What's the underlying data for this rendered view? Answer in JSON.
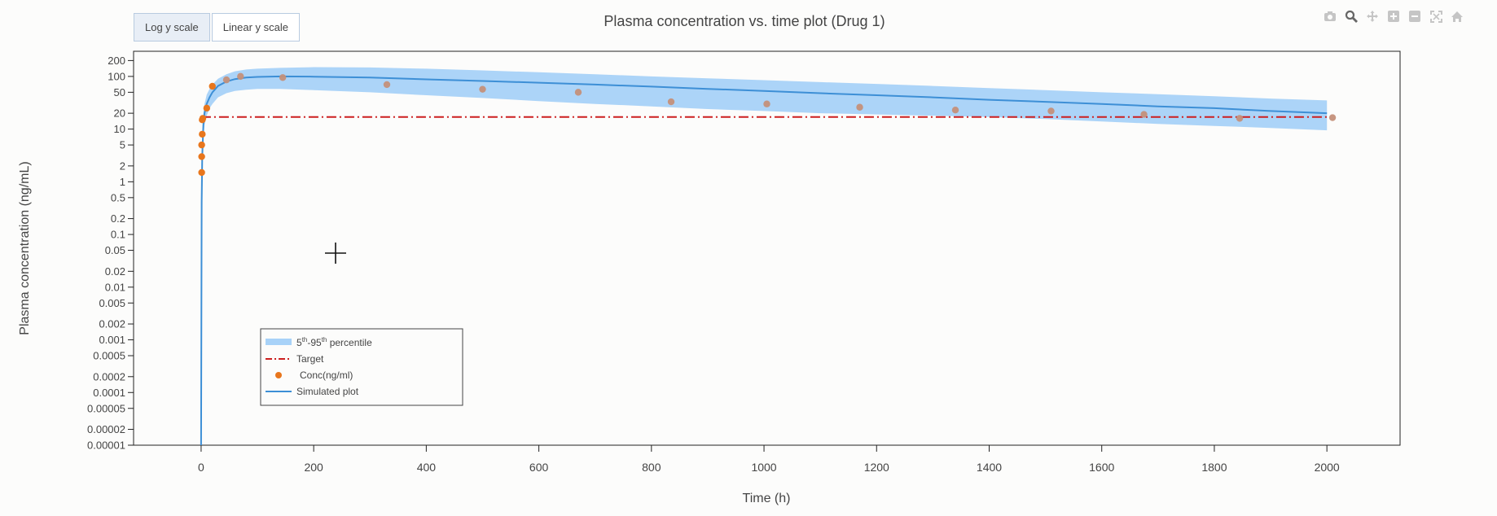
{
  "buttons": {
    "log_label": "Log y scale",
    "linear_label": "Linear y scale",
    "active": "log"
  },
  "modebar": [
    "camera-icon",
    "zoom-icon",
    "pan-icon",
    "zoom-in-icon",
    "zoom-out-icon",
    "autoscale-icon",
    "reset-axes-icon"
  ],
  "colors": {
    "band": "#a8d2f8",
    "line": "#3d8fd6",
    "target": "#cc1f1f",
    "points": "#e8761c",
    "frame": "#222222"
  },
  "chart_data": {
    "type": "line",
    "title": "Plasma concentration vs. time plot (Drug 1)",
    "xlabel": "Time (h)",
    "ylabel": "Plasma concentration (ng/mL)",
    "yscale": "log",
    "xlim": [
      -120,
      2130
    ],
    "ylim": [
      1e-05,
      300
    ],
    "x_ticks": [
      0,
      200,
      400,
      600,
      800,
      1000,
      1200,
      1400,
      1600,
      1800,
      2000
    ],
    "y_ticks": [
      200,
      100,
      50,
      20,
      10,
      5,
      2,
      1,
      0.5,
      0.2,
      0.1,
      0.05,
      0.02,
      0.01,
      0.005,
      0.002,
      0.001,
      0.0005,
      0.0002,
      0.0001,
      5e-05,
      2e-05,
      1e-05
    ],
    "y_tick_labels": [
      "200",
      "100",
      "50",
      "20",
      "10",
      "5",
      "2",
      "1",
      "0.5",
      "0.2",
      "0.1",
      "0.05",
      "0.02",
      "0.01",
      "0.005",
      "0.002",
      "0.001",
      "0.0005",
      "0.0002",
      "0.0001",
      "0.00005",
      "0.00002",
      "0.00001"
    ],
    "legend": {
      "position": "lower-left",
      "band_label_parts": [
        "5",
        "th",
        "-95",
        "th",
        " percentile"
      ],
      "target_label": "Target",
      "points_label": "Conc(ng/ml)",
      "line_label": "Simulated plot"
    },
    "target": {
      "name": "Target",
      "y": 17
    },
    "simulated": {
      "name": "Simulated plot",
      "x": [
        0,
        1,
        2,
        4,
        6,
        10,
        15,
        20,
        30,
        45,
        60,
        80,
        100,
        140,
        200,
        300,
        400,
        500,
        600,
        700,
        800,
        900,
        1000,
        1100,
        1200,
        1300,
        1400,
        1500,
        1600,
        1700,
        1800,
        1900,
        2000
      ],
      "y": [
        1e-05,
        0.4,
        3,
        12,
        20,
        30,
        40,
        50,
        66,
        80,
        89,
        95,
        98,
        100,
        99,
        95,
        88,
        82,
        76,
        70,
        64,
        58,
        53,
        48,
        44,
        40,
        36,
        33,
        30,
        27,
        25,
        22,
        20
      ]
    },
    "band": {
      "name": "5th-95th percentile",
      "x": [
        2,
        4,
        6,
        10,
        15,
        20,
        30,
        45,
        60,
        80,
        100,
        140,
        200,
        300,
        400,
        500,
        600,
        700,
        800,
        900,
        1000,
        1100,
        1200,
        1300,
        1400,
        1500,
        1600,
        1700,
        1800,
        1900,
        2000
      ],
      "upper": [
        5,
        20,
        30,
        45,
        58,
        70,
        90,
        110,
        125,
        135,
        140,
        145,
        150,
        148,
        140,
        130,
        120,
        110,
        100,
        92,
        85,
        78,
        72,
        66,
        60,
        55,
        50,
        46,
        42,
        38,
        35
      ],
      "lower": [
        1.5,
        7,
        12,
        18,
        25,
        30,
        40,
        48,
        53,
        56,
        58,
        58,
        55,
        50,
        44,
        39,
        34,
        30,
        27,
        24,
        22,
        20,
        19,
        18,
        17,
        15.5,
        14,
        12.5,
        11.5,
        10.5,
        9.5
      ]
    },
    "points": {
      "name": "Conc(ng/ml)",
      "x": [
        1,
        1,
        1,
        2,
        2,
        3,
        10,
        20,
        45,
        70,
        145,
        330,
        500,
        670,
        835,
        1005,
        1170,
        1340,
        1510,
        1675,
        1845,
        2010
      ],
      "y": [
        1.5,
        3,
        5,
        8,
        15,
        16,
        25,
        65,
        86,
        100,
        95,
        70,
        57,
        50,
        33,
        30,
        26,
        23,
        22,
        19,
        16,
        16.5
      ]
    }
  }
}
